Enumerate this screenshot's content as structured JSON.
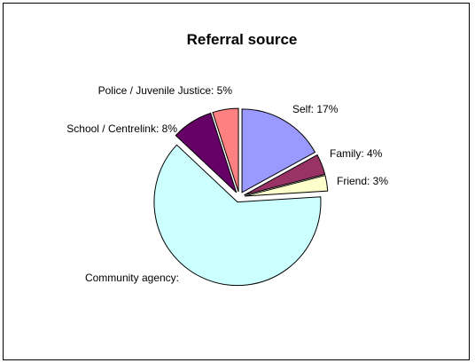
{
  "chart_data": {
    "type": "pie",
    "title": "Referral source",
    "slices": [
      {
        "name": "Self",
        "label": "Self: 17%",
        "value": 17,
        "color": "#9999FF",
        "exploded": true
      },
      {
        "name": "Family",
        "label": "Family: 4%",
        "value": 4,
        "color": "#993366",
        "exploded": true
      },
      {
        "name": "Friend",
        "label": "Friend: 3%",
        "value": 3,
        "color": "#FFFFCC",
        "exploded": true
      },
      {
        "name": "Community agency",
        "label": "Community agency:",
        "value": 63,
        "color": "#CCFFFF",
        "exploded": true
      },
      {
        "name": "School / Centrelink",
        "label": "School / Centrelink: 8%",
        "value": 8,
        "color": "#660066",
        "exploded": true
      },
      {
        "name": "Police / Juvenile Justice",
        "label": "Police / Juvenile Justice: 5%",
        "value": 5,
        "color": "#FF8080",
        "exploded": true
      }
    ],
    "start_angle_deg": 0,
    "direction": "clockwise"
  }
}
